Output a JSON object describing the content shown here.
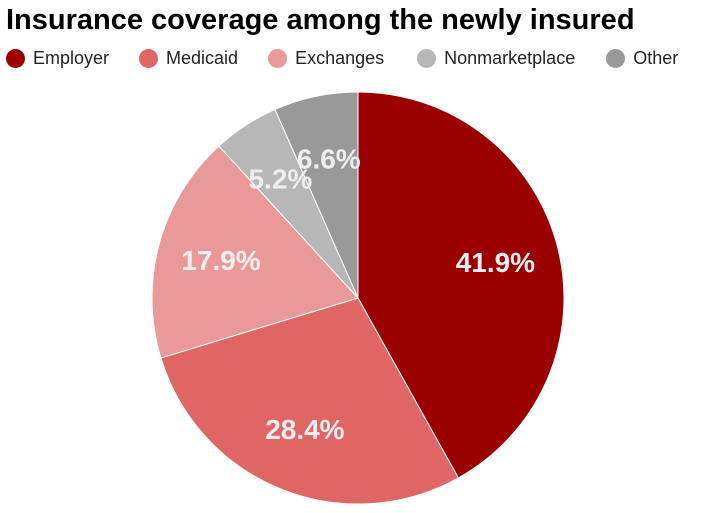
{
  "chart_data": {
    "type": "pie",
    "title": "Insurance coverage among the newly insured",
    "categories": [
      "Employer",
      "Medicaid",
      "Exchanges",
      "Nonmarketplace",
      "Other"
    ],
    "values": [
      41.9,
      28.4,
      17.9,
      5.2,
      6.6
    ],
    "labels": [
      "41.9%",
      "28.4%",
      "17.9%",
      "5.2%",
      "6.6%"
    ],
    "colors": [
      "#9b0000",
      "#e06666",
      "#ea9999",
      "#b7b7b7",
      "#999999"
    ],
    "label_color": "#eeeeee",
    "legend_position": "top",
    "start_angle": "12 o'clock",
    "direction": "clockwise"
  }
}
